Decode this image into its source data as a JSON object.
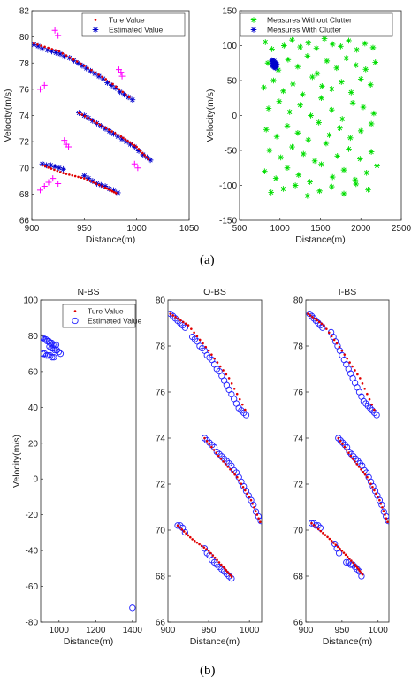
{
  "figure": {
    "caption_a": "(a)",
    "caption_b": "(b)"
  },
  "chart_data": [
    {
      "id": "a1",
      "type": "scatter",
      "title": "",
      "xlabel": "Distance(m)",
      "ylabel": "Velocity(m/s)",
      "xlim": [
        900,
        1050
      ],
      "ylim": [
        66,
        82
      ],
      "xticks": [
        900,
        950,
        1000,
        1050
      ],
      "yticks": [
        66,
        68,
        70,
        72,
        74,
        76,
        78,
        80,
        82
      ],
      "grid": false,
      "legend_position": "top-right",
      "legend": [
        {
          "label": "Ture Value",
          "marker": "dot",
          "color": "#e00000"
        },
        {
          "label": "Estimated Value",
          "marker": "star",
          "color": "#0000cc"
        }
      ],
      "tracks": [
        {
          "x": [
            902,
            926,
            950,
            974,
            996
          ],
          "y": [
            79.5,
            78.9,
            77.8,
            76.6,
            75.2
          ]
        },
        {
          "x": [
            945,
            965,
            985,
            1000,
            1013
          ],
          "y": [
            74.2,
            73.3,
            72.4,
            71.6,
            70.5
          ]
        },
        {
          "x": [
            910,
            930,
            950,
            970,
            982
          ],
          "y": [
            70.2,
            69.6,
            69.2,
            68.5,
            68.0
          ]
        }
      ],
      "series": [
        {
          "name": "Estimated Value",
          "color": "#0000cc",
          "marker": "star",
          "x": [
            902,
            906,
            910,
            915,
            919,
            923,
            927,
            931,
            936,
            940,
            944,
            948,
            952,
            956,
            960,
            964,
            968,
            972,
            976,
            980,
            984,
            988,
            992,
            996,
            945,
            950,
            954,
            958,
            962,
            966,
            970,
            974,
            978,
            982,
            986,
            990,
            994,
            998,
            1002,
            1006,
            1010,
            1013,
            910,
            914,
            918,
            922,
            926,
            930,
            950,
            954,
            958,
            962,
            966,
            970,
            974,
            978,
            982
          ],
          "y": [
            79.4,
            79.3,
            79.1,
            79.0,
            78.9,
            78.8,
            78.7,
            78.5,
            78.4,
            78.2,
            78.0,
            77.8,
            77.6,
            77.4,
            77.2,
            77.0,
            76.8,
            76.5,
            76.3,
            76.1,
            75.8,
            75.6,
            75.4,
            75.2,
            74.2,
            74.0,
            73.8,
            73.6,
            73.4,
            73.2,
            73.0,
            72.8,
            72.6,
            72.4,
            72.2,
            72.0,
            71.8,
            71.6,
            71.3,
            71.0,
            70.8,
            70.6,
            70.3,
            70.2,
            70.2,
            70.1,
            70.0,
            69.9,
            69.4,
            69.2,
            69.0,
            68.8,
            68.7,
            68.6,
            68.4,
            68.3,
            68.1
          ]
        },
        {
          "name": "",
          "color": "#ff00ff",
          "marker": "plus",
          "x": [
            908,
            912,
            922,
            925,
            931,
            933,
            935,
            983,
            985,
            986,
            998,
            1001,
            912,
            916,
            908,
            920,
            925
          ],
          "y": [
            76.0,
            76.3,
            80.5,
            80.1,
            72.1,
            71.8,
            71.6,
            77.5,
            77.3,
            77.0,
            70.3,
            70.0,
            68.6,
            68.9,
            68.3,
            69.2,
            68.8
          ]
        }
      ]
    },
    {
      "id": "a2",
      "type": "scatter",
      "title": "",
      "xlabel": "Distance(m)",
      "ylabel": "Velocity(m/s)",
      "xlim": [
        500,
        2500
      ],
      "ylim": [
        -150,
        150
      ],
      "xticks": [
        500,
        1000,
        1500,
        2000,
        2500
      ],
      "yticks": [
        -150,
        -100,
        -50,
        0,
        50,
        100,
        150
      ],
      "grid": false,
      "legend_position": "top-right",
      "legend": [
        {
          "label": "Measures Without Clutter",
          "marker": "star",
          "color": "#00dd00"
        },
        {
          "label": "Measures With Clutter",
          "marker": "star",
          "color": "#0000cc"
        }
      ],
      "series": [
        {
          "name": "Measures Without Clutter",
          "color": "#00dd00",
          "marker": "star",
          "x": [
            820,
            900,
            1050,
            1150,
            1250,
            1350,
            1450,
            1550,
            1650,
            1750,
            1850,
            1950,
            2050,
            2150,
            850,
            980,
            1100,
            1220,
            1340,
            1460,
            1580,
            1700,
            1820,
            1940,
            2060,
            2180,
            800,
            920,
            1040,
            1160,
            1280,
            1400,
            1520,
            1640,
            1760,
            1880,
            2000,
            2120,
            860,
            990,
            1120,
            1250,
            1380,
            1510,
            1640,
            1770,
            1900,
            2030,
            2160,
            830,
            960,
            1090,
            1220,
            1350,
            1480,
            1610,
            1740,
            1870,
            2000,
            2130,
            870,
            1010,
            1150,
            1290,
            1430,
            1570,
            1710,
            1850,
            1990,
            2130,
            810,
            950,
            1090,
            1230,
            1370,
            1510,
            1650,
            1790,
            1930,
            2070,
            2200,
            890,
            1040,
            1190,
            1340,
            1490,
            1640,
            1790,
            1940,
            2090
          ],
          "y": [
            105,
            95,
            100,
            108,
            98,
            104,
            96,
            110,
            102,
            99,
            107,
            94,
            103,
            97,
            75,
            65,
            80,
            70,
            85,
            60,
            78,
            68,
            82,
            72,
            66,
            76,
            40,
            50,
            35,
            45,
            30,
            55,
            42,
            38,
            48,
            33,
            52,
            44,
            10,
            20,
            5,
            15,
            0,
            25,
            8,
            -5,
            18,
            12,
            3,
            -20,
            -30,
            -15,
            -25,
            -35,
            -10,
            -28,
            -18,
            -32,
            -22,
            -12,
            -50,
            -60,
            -45,
            -55,
            -65,
            -40,
            -58,
            -48,
            -62,
            -52,
            -80,
            -90,
            -75,
            -85,
            -95,
            -70,
            -88,
            -78,
            -92,
            -82,
            -72,
            -110,
            -105,
            -100,
            -115,
            -108,
            -102,
            -112,
            -98,
            -106
          ]
        },
        {
          "name": "Measures With Clutter",
          "color": "#0000cc",
          "marker": "star",
          "x": [
            900,
            910,
            920,
            930,
            940,
            950,
            960,
            905,
            915,
            925,
            935,
            945,
            955,
            912,
            928,
            944
          ],
          "y": [
            79,
            78,
            77,
            76,
            75,
            74,
            73,
            72,
            71,
            70,
            69,
            68,
            70,
            75,
            78,
            73
          ]
        }
      ]
    },
    {
      "id": "b1",
      "type": "scatter",
      "title": "N-BS",
      "xlabel": "Distance(m)",
      "ylabel": "Velocity(m/s)",
      "xlim": [
        900,
        1420
      ],
      "ylim": [
        -80,
        100
      ],
      "xticks": [
        1000,
        1200,
        1400
      ],
      "yticks": [
        -80,
        -60,
        -40,
        -20,
        0,
        20,
        40,
        60,
        80,
        100
      ],
      "grid": false,
      "legend_position": "top-right",
      "legend": [
        {
          "label": "Ture Value",
          "marker": "dot",
          "color": "#e00000"
        },
        {
          "label": "Estimated Value",
          "marker": "circle",
          "color": "#2020ff"
        }
      ],
      "series": [
        {
          "name": "Estimated Value",
          "color": "#2020ff",
          "marker": "circle",
          "x": [
            905,
            912,
            920,
            928,
            936,
            944,
            952,
            960,
            968,
            976,
            984,
            948,
            958,
            968,
            978,
            988,
            998,
            1008,
            912,
            922,
            932,
            942,
            952,
            962,
            972,
            1400
          ],
          "y": [
            79,
            79,
            78,
            78,
            77,
            77,
            76,
            76,
            75,
            75,
            75,
            74,
            73,
            73,
            72,
            72,
            71,
            70,
            70,
            70,
            69,
            69,
            69,
            68,
            68,
            -72
          ]
        }
      ]
    },
    {
      "id": "b2",
      "type": "scatter",
      "title": "O-BS",
      "xlabel": "Distance(m)",
      "ylabel": "",
      "xlim": [
        900,
        1015
      ],
      "ylim": [
        66,
        80
      ],
      "xticks": [
        900,
        950,
        1000
      ],
      "yticks": [
        66,
        68,
        70,
        72,
        74,
        76,
        78,
        80
      ],
      "grid": false,
      "tracks": [
        {
          "x": [
            903,
            925,
            950,
            975,
            998
          ],
          "y": [
            79.4,
            78.9,
            77.8,
            76.6,
            75.0
          ]
        },
        {
          "x": [
            945,
            965,
            985,
            1002,
            1015
          ],
          "y": [
            74.0,
            73.1,
            72.3,
            71.3,
            70.2
          ]
        },
        {
          "x": [
            912,
            930,
            950,
            968,
            980
          ],
          "y": [
            70.2,
            69.6,
            69.1,
            68.4,
            67.9
          ]
        }
      ],
      "series": [
        {
          "name": "Estimated Value",
          "color": "#2020ff",
          "marker": "circle",
          "x": [
            903,
            906,
            909,
            912,
            915,
            918,
            921,
            930,
            933,
            936,
            939,
            942,
            945,
            948,
            951,
            954,
            957,
            960,
            963,
            966,
            969,
            972,
            975,
            978,
            981,
            984,
            987,
            990,
            993,
            996,
            945,
            948,
            951,
            954,
            957,
            960,
            963,
            966,
            969,
            972,
            975,
            978,
            981,
            984,
            987,
            990,
            993,
            996,
            999,
            1002,
            1005,
            1008,
            1011,
            1014,
            912,
            915,
            918,
            921,
            945,
            948,
            951,
            954,
            957,
            960,
            963,
            966,
            969,
            972,
            975,
            978
          ],
          "y": [
            79.4,
            79.3,
            79.2,
            79.1,
            79.0,
            78.9,
            78.8,
            78.4,
            78.3,
            78.2,
            78.0,
            77.9,
            77.8,
            77.6,
            77.5,
            77.4,
            77.2,
            77.0,
            76.9,
            76.7,
            76.5,
            76.3,
            76.1,
            75.9,
            75.7,
            75.5,
            75.3,
            75.2,
            75.1,
            75.0,
            74.0,
            73.9,
            73.8,
            73.7,
            73.6,
            73.4,
            73.3,
            73.2,
            73.1,
            73.0,
            72.9,
            72.8,
            72.6,
            72.5,
            72.3,
            72.1,
            71.9,
            71.7,
            71.5,
            71.3,
            71.1,
            70.8,
            70.6,
            70.4,
            70.2,
            70.2,
            70.1,
            69.9,
            69.2,
            69.0,
            68.9,
            68.7,
            68.6,
            68.5,
            68.4,
            68.3,
            68.2,
            68.1,
            68.0,
            67.9
          ]
        }
      ]
    },
    {
      "id": "b3",
      "type": "scatter",
      "title": "I-BS",
      "xlabel": "Distance(m)",
      "ylabel": "",
      "xlim": [
        900,
        1015
      ],
      "ylim": [
        66,
        80
      ],
      "xticks": [
        900,
        950,
        1000
      ],
      "yticks": [
        66,
        68,
        70,
        72,
        74,
        76,
        78,
        80
      ],
      "grid": false,
      "tracks": [
        {
          "x": [
            903,
            925,
            950,
            975,
            998
          ],
          "y": [
            79.4,
            78.9,
            77.8,
            76.6,
            75.0
          ]
        },
        {
          "x": [
            945,
            965,
            985,
            1002,
            1015
          ],
          "y": [
            74.0,
            73.1,
            72.3,
            71.3,
            70.2
          ]
        },
        {
          "x": [
            908,
            930,
            950,
            968,
            980
          ],
          "y": [
            70.3,
            69.7,
            69.1,
            68.5,
            68.0
          ]
        }
      ],
      "series": [
        {
          "name": "Estimated Value",
          "color": "#2020ff",
          "marker": "circle",
          "x": [
            905,
            908,
            911,
            914,
            917,
            920,
            923,
            935,
            938,
            941,
            944,
            947,
            950,
            953,
            956,
            959,
            962,
            965,
            968,
            971,
            974,
            977,
            980,
            983,
            986,
            989,
            992,
            995,
            998,
            945,
            948,
            951,
            954,
            957,
            960,
            963,
            966,
            969,
            972,
            975,
            978,
            981,
            984,
            987,
            990,
            993,
            996,
            999,
            1002,
            1005,
            1008,
            1011,
            1014,
            908,
            911,
            914,
            917,
            920,
            940,
            943,
            946,
            956,
            959,
            962,
            965,
            968,
            971,
            974,
            977
          ],
          "y": [
            79.4,
            79.3,
            79.2,
            79.1,
            79.0,
            78.9,
            78.8,
            78.6,
            78.4,
            78.2,
            78.0,
            77.8,
            77.6,
            77.4,
            77.2,
            77.0,
            76.8,
            76.6,
            76.4,
            76.2,
            76.0,
            75.8,
            75.6,
            75.5,
            75.4,
            75.3,
            75.2,
            75.1,
            75.0,
            74.0,
            73.9,
            73.8,
            73.7,
            73.6,
            73.4,
            73.3,
            73.2,
            73.1,
            73.0,
            72.9,
            72.8,
            72.6,
            72.5,
            72.3,
            72.1,
            71.9,
            71.7,
            71.5,
            71.3,
            71.1,
            70.8,
            70.6,
            70.4,
            70.3,
            70.3,
            70.2,
            70.2,
            70.1,
            69.4,
            69.2,
            69.0,
            68.6,
            68.6,
            68.5,
            68.5,
            68.4,
            68.3,
            68.2,
            68.0
          ]
        }
      ]
    }
  ]
}
